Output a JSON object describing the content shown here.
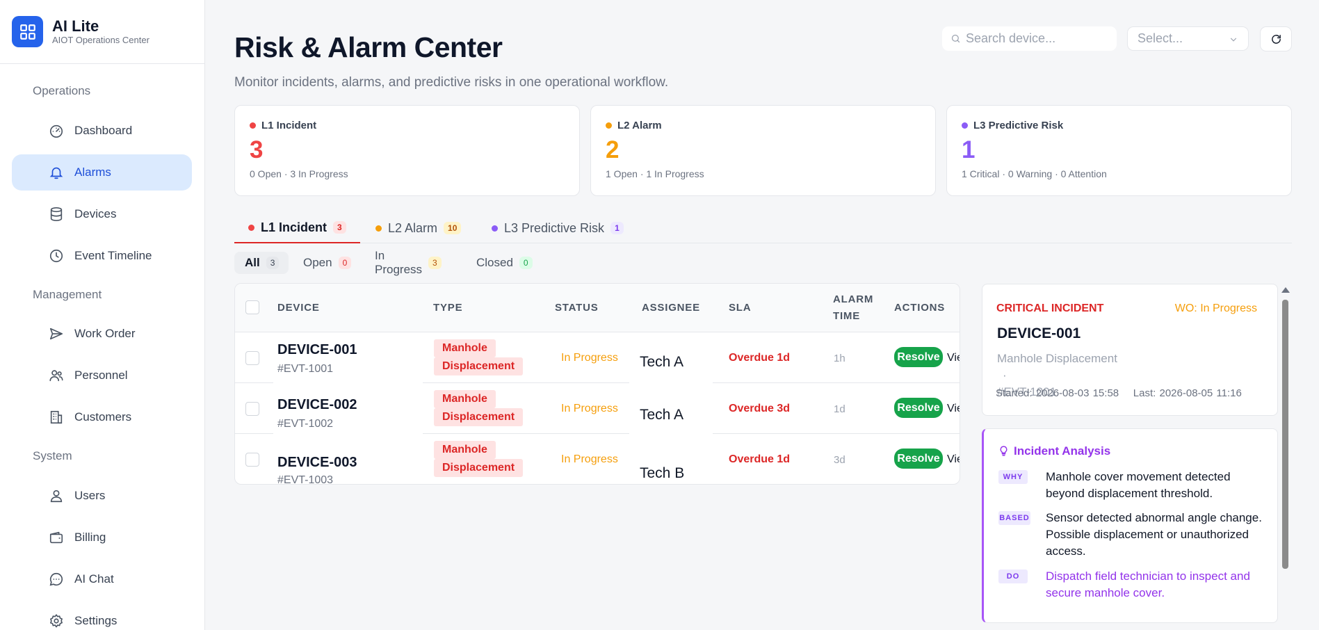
{
  "brand": {
    "title": "AI Lite",
    "subtitle": "AIOT Operations Center"
  },
  "sidebar": {
    "sections": {
      "operations": "Operations",
      "management": "Management",
      "system": "System"
    },
    "items": [
      {
        "label": "Dashboard",
        "icon": "gauge-icon"
      },
      {
        "label": "Alarms",
        "icon": "bell-icon",
        "active": true
      },
      {
        "label": "Devices",
        "icon": "database-icon"
      },
      {
        "label": "Event Timeline",
        "icon": "clock-icon"
      },
      {
        "label": "Work Order",
        "icon": "send-icon"
      },
      {
        "label": "Personnel",
        "icon": "users-icon"
      },
      {
        "label": "Customers",
        "icon": "building-icon"
      },
      {
        "label": "Users",
        "icon": "user-icon"
      },
      {
        "label": "Billing",
        "icon": "wallet-icon"
      },
      {
        "label": "AI Chat",
        "icon": "chat-icon"
      },
      {
        "label": "Settings",
        "icon": "gear-icon"
      }
    ]
  },
  "header": {
    "title": "Risk & Alarm Center",
    "subtitle": "Monitor incidents, alarms, and predictive risks in one operational workflow.",
    "search_placeholder": "Search device...",
    "select_placeholder": "Select..."
  },
  "stats": [
    {
      "label": "L1 Incident",
      "value": "3",
      "detail": "0 Open · 3 In Progress",
      "color": "#ef4444"
    },
    {
      "label": "L2 Alarm",
      "value": "2",
      "detail": "1 Open · 1 In Progress",
      "color": "#f59e0b"
    },
    {
      "label": "L3 Predictive Risk",
      "value": "1",
      "detail": "1 Critical · 0 Warning · 0 Attention",
      "color": "#8b5cf6"
    }
  ],
  "tabs": [
    {
      "label": "L1 Incident",
      "count": "3"
    },
    {
      "label": "L2 Alarm",
      "count": "10"
    },
    {
      "label": "L3 Predictive Risk",
      "count": "1"
    }
  ],
  "filters": [
    {
      "label": "All",
      "count": "3"
    },
    {
      "label": "Open",
      "count": "0"
    },
    {
      "label": "In Progress",
      "count": "3"
    },
    {
      "label": "Closed",
      "count": "0"
    }
  ],
  "table": {
    "headers": {
      "device": "DEVICE",
      "type": "TYPE",
      "status": "STATUS",
      "assignee": "ASSIGNEE",
      "sla": "SLA",
      "alarm_time_1": "ALARM",
      "alarm_time_2": "TIME",
      "actions": "ACTIONS"
    },
    "rows": [
      {
        "device": "DEVICE-001",
        "event": "#EVT-1001",
        "type_1": "Manhole",
        "type_2": "Displacement",
        "status": "In Progress",
        "assignee": "Tech A",
        "sla": "Overdue 1d",
        "time": "1h",
        "resolve": "Resolve",
        "view": "View"
      },
      {
        "device": "DEVICE-002",
        "event": "#EVT-1002",
        "type_1": "Manhole",
        "type_2": "Displacement",
        "status": "In Progress",
        "assignee": "Tech A",
        "sla": "Overdue 3d",
        "time": "1d",
        "resolve": "Resolve",
        "view": "View"
      },
      {
        "device": "DEVICE-003",
        "event": "#EVT-1003",
        "type_1": "Manhole",
        "type_2": "Displacement",
        "status": "In Progress",
        "assignee": "Tech B",
        "sla": "Overdue 1d",
        "time": "3d",
        "resolve": "Resolve",
        "view": "View"
      }
    ]
  },
  "detail": {
    "severity": "CRITICAL INCIDENT",
    "work_order": "WO: In Progress",
    "device": "DEVICE-001",
    "type": "Manhole Displacement",
    "separator": "·",
    "event": "#EVT-1001",
    "times": "Started: 2026-08-03 15:58    Last: 2026-08-05 11:16"
  },
  "analysis": {
    "title": "Incident Analysis",
    "why_tag": "WHY",
    "why": "Manhole cover movement detected beyond displacement threshold.",
    "based_tag": "BASED",
    "based": "Sensor detected abnormal angle change. Possible displacement or unauthorized access.",
    "do_tag": "DO",
    "do": "Dispatch field technician to inspect and secure manhole cover."
  }
}
